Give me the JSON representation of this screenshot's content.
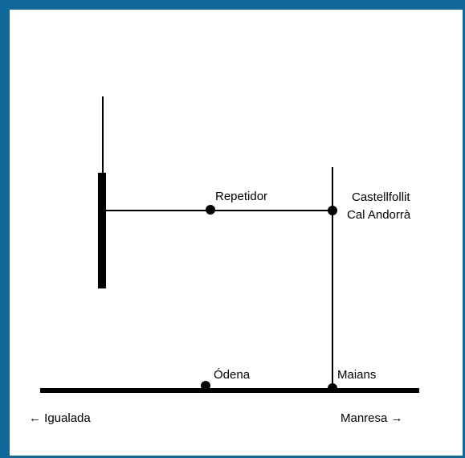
{
  "places": [
    {
      "label": "Repetidor"
    },
    {
      "label": "Castellfollit"
    },
    {
      "label": "Cal Andorrà"
    },
    {
      "label": "Ódena"
    },
    {
      "label": "Maians"
    }
  ],
  "directions": [
    {
      "label": "← Igualada"
    },
    {
      "label": "Manresa →"
    }
  ]
}
